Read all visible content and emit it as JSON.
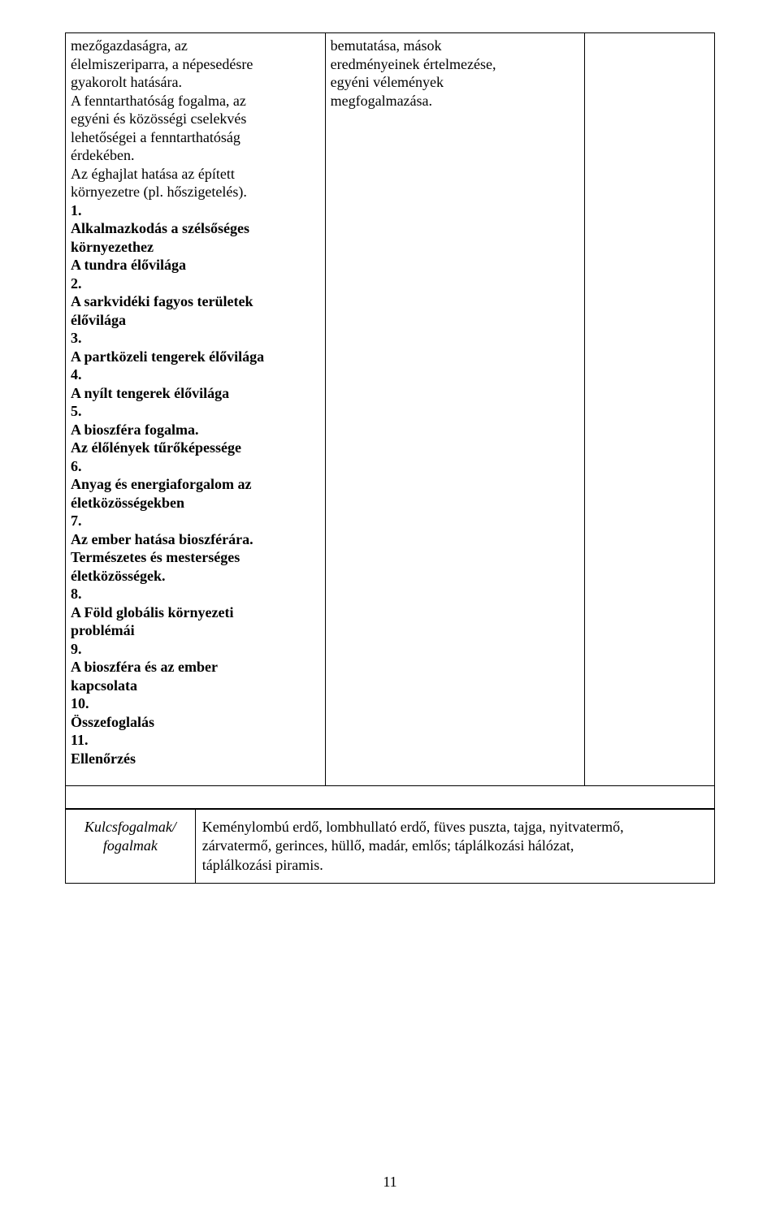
{
  "row1": {
    "col1_lines": [
      {
        "t": "mezőgazdaságra, az",
        "b": false
      },
      {
        "t": "élelmiszeriparra, a népesedésre",
        "b": false
      },
      {
        "t": "gyakorolt hatására.",
        "b": false
      },
      {
        "t": "A fenntarthatóság fogalma, az",
        "b": false
      },
      {
        "t": "egyéni és közösségi cselekvés",
        "b": false
      },
      {
        "t": "lehetőségei a fenntarthatóság",
        "b": false
      },
      {
        "t": "érdekében.",
        "b": false
      },
      {
        "t": "Az éghajlat hatása az épített",
        "b": false
      },
      {
        "t": "környezetre (pl. hőszigetelés).",
        "b": false
      },
      {
        "t": "1.",
        "b": true
      },
      {
        "t": "Alkalmazkodás a szélsőséges",
        "b": true
      },
      {
        "t": "környezethez",
        "b": true
      },
      {
        "t": "A tundra élővilága",
        "b": true
      },
      {
        "t": "2.",
        "b": true
      },
      {
        "t": "A sarkvidéki fagyos területek",
        "b": true
      },
      {
        "t": "élővilága",
        "b": true
      },
      {
        "t": "3.",
        "b": true
      },
      {
        "t": "A partközeli tengerek élővilága",
        "b": true
      },
      {
        "t": "4.",
        "b": true
      },
      {
        "t": "A nyílt tengerek élővilága",
        "b": true
      },
      {
        "t": "5.",
        "b": true
      },
      {
        "t": "A bioszféra fogalma.",
        "b": true
      },
      {
        "t": "Az élőlények tűrőképessége",
        "b": true
      },
      {
        "t": "6.",
        "b": true
      },
      {
        "t": "Anyag és energiaforgalom az",
        "b": true
      },
      {
        "t": "életközösségekben",
        "b": true
      },
      {
        "t": "7.",
        "b": true
      },
      {
        "t": "Az ember hatása bioszférára.",
        "b": true
      },
      {
        "t": "Természetes és mesterséges",
        "b": true
      },
      {
        "t": "életközösségek.",
        "b": true
      },
      {
        "t": "8.",
        "b": true
      },
      {
        "t": "A Föld globális környezeti",
        "b": true
      },
      {
        "t": "problémái",
        "b": true
      },
      {
        "t": "9.",
        "b": true
      },
      {
        "t": "A bioszféra és az ember",
        "b": true
      },
      {
        "t": "kapcsolata",
        "b": true
      },
      {
        "t": "10.",
        "b": true
      },
      {
        "t": "Összefoglalás",
        "b": true
      },
      {
        "t": "11.",
        "b": true
      },
      {
        "t": "Ellenőrzés",
        "b": true
      }
    ],
    "col2_lines": [
      {
        "t": "bemutatása, mások",
        "b": false
      },
      {
        "t": "eredményeinek értelmezése,",
        "b": false
      },
      {
        "t": "egyéni vélemények",
        "b": false
      },
      {
        "t": "megfogalmazása.",
        "b": false
      }
    ]
  },
  "kulcs": {
    "label_line1": "Kulcsfogalmak/",
    "label_line2": "fogalmak",
    "text_lines": [
      "Keménylombú erdő, lombhullató erdő, füves puszta, tajga, nyitvatermő,",
      "zárvatermő, gerinces, hüllő, madár, emlős; táplálkozási hálózat,",
      "táplálkozási piramis."
    ]
  },
  "page_number": "11"
}
